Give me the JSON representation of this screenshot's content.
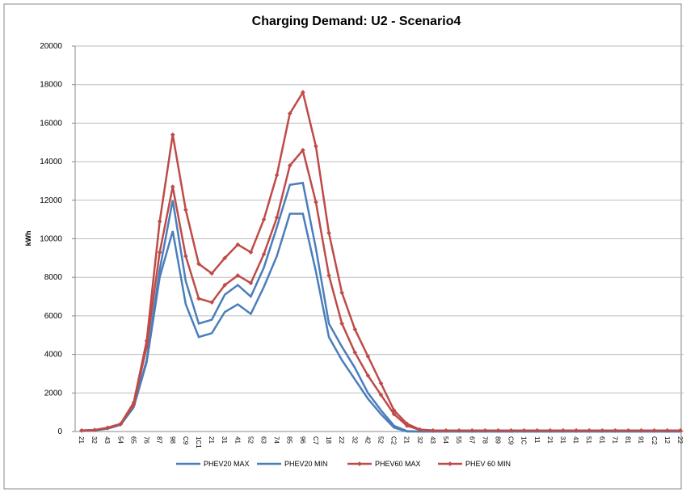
{
  "chart_data": {
    "type": "line",
    "title": "Charging Demand: U2 - Scenario4",
    "y_label": "kWh",
    "categories": [
      "21",
      "32",
      "43",
      "54",
      "65",
      "76",
      "87",
      "98",
      "C9",
      "1C1",
      "21",
      "31",
      "41",
      "52",
      "63",
      "74",
      "85",
      "96",
      "C7",
      "18",
      "22",
      "32",
      "42",
      "52",
      "C2",
      "21",
      "32",
      "43",
      "54",
      "55",
      "67",
      "78",
      "89",
      "C9",
      "1C",
      "11",
      "21",
      "31",
      "41",
      "51",
      "61",
      "71",
      "81",
      "91",
      "C2",
      "12",
      "22"
    ],
    "ylim": [
      0,
      20000
    ],
    "yticks": [
      0,
      2000,
      4000,
      6000,
      8000,
      10000,
      12000,
      14000,
      16000,
      18000,
      20000
    ],
    "grid": true,
    "legend": "bottom",
    "series": [
      {
        "name": "PHEV20 MAX",
        "color": "#4a7ebb",
        "marker": false,
        "values": [
          30,
          60,
          150,
          350,
          1300,
          3700,
          8400,
          12000,
          7800,
          5600,
          5800,
          7100,
          7600,
          7000,
          8500,
          10600,
          12800,
          12900,
          9500,
          5600,
          4400,
          3300,
          2000,
          1100,
          300,
          20,
          0,
          0,
          0,
          0,
          0,
          0,
          0,
          0,
          0,
          0,
          0,
          0,
          0,
          0,
          0,
          0,
          0,
          0,
          0,
          0,
          0
        ]
      },
      {
        "name": "PHEV20 MIN",
        "color": "#4a7ebb",
        "marker": false,
        "values": [
          30,
          60,
          150,
          350,
          1250,
          3600,
          8000,
          10400,
          6600,
          4900,
          5100,
          6200,
          6600,
          6100,
          7500,
          9100,
          11300,
          11300,
          8300,
          4900,
          3700,
          2700,
          1700,
          900,
          200,
          0,
          0,
          0,
          0,
          0,
          0,
          0,
          0,
          0,
          0,
          0,
          0,
          0,
          0,
          0,
          0,
          0,
          0,
          0,
          0,
          0,
          0
        ]
      },
      {
        "name": "PHEV60 MAX",
        "color": "#be4b48",
        "marker": true,
        "values": [
          50,
          80,
          200,
          400,
          1500,
          4700,
          10900,
          15400,
          11500,
          8700,
          8200,
          9000,
          9700,
          9300,
          11000,
          13300,
          16500,
          17600,
          14800,
          10300,
          7200,
          5300,
          3900,
          2500,
          1100,
          400,
          100,
          50,
          50,
          50,
          50,
          50,
          50,
          50,
          50,
          50,
          50,
          50,
          50,
          50,
          50,
          50,
          50,
          50,
          50,
          50,
          50
        ]
      },
      {
        "name": "PHEV 60 MIN",
        "color": "#be4b48",
        "marker": true,
        "values": [
          50,
          80,
          180,
          380,
          1400,
          4400,
          9300,
          12700,
          9100,
          6900,
          6700,
          7600,
          8100,
          7700,
          9200,
          11100,
          13800,
          14600,
          11900,
          8100,
          5600,
          4100,
          2900,
          1900,
          900,
          300,
          80,
          50,
          50,
          50,
          50,
          50,
          50,
          50,
          50,
          50,
          50,
          50,
          50,
          50,
          50,
          50,
          50,
          50,
          50,
          50,
          50
        ]
      }
    ]
  }
}
